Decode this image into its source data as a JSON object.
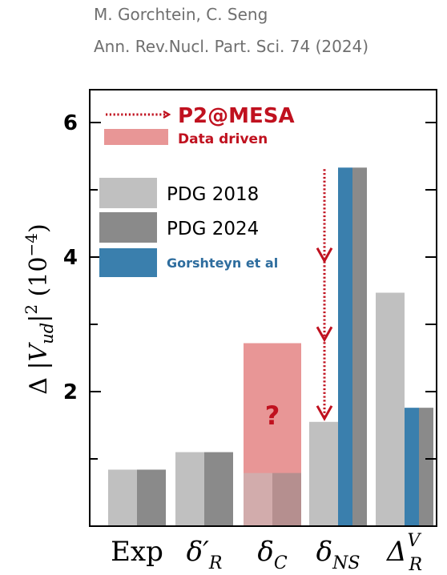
{
  "citation": {
    "authors": "M. Gorchtein, C. Seng",
    "journal": "Ann. Rev.Nucl. Part. Sci. 74 (2024)"
  },
  "chart_data": {
    "type": "bar",
    "ylabel_parts": {
      "delta": "Δ",
      "bar": "|",
      "V": "V",
      "sub": "ud",
      "sup": "2",
      "unit_open": "(10",
      "unit_exp": "−4",
      "unit_close": ")"
    },
    "ylim": [
      0,
      6.5
    ],
    "yticks": [
      2,
      4,
      6
    ],
    "category_labels": [
      {
        "main": "Exp",
        "sub": "",
        "sup": ""
      },
      {
        "main": "δ′",
        "sub": "R",
        "sup": ""
      },
      {
        "main": "δ",
        "sub": "C",
        "sup": ""
      },
      {
        "main": "δ",
        "sub": "NS",
        "sup": ""
      },
      {
        "main": "Δ",
        "sub": "R",
        "sup": "V"
      }
    ],
    "series": [
      {
        "name": "PDG 2018",
        "color": "#c0c0c0",
        "values": [
          0.84,
          1.1,
          0.79,
          1.55,
          3.47
        ]
      },
      {
        "name": "PDG 2024",
        "color": "#8a8a8a",
        "values": [
          0.84,
          1.1,
          0.79,
          5.33,
          1.76
        ]
      },
      {
        "name": "Gorshteyn et al",
        "color": "#3a7fad",
        "values": [
          null,
          null,
          null,
          5.33,
          1.76
        ]
      }
    ],
    "data_driven": {
      "label": "Data driven",
      "color": "#e89696",
      "category": 2,
      "value": 2.72,
      "mark": "?"
    },
    "p2_arrow": {
      "label": "P2@MESA",
      "color": "#c0111f",
      "category": 3,
      "from": 5.33,
      "to": 1.55
    },
    "legend_position": "upper-left"
  }
}
